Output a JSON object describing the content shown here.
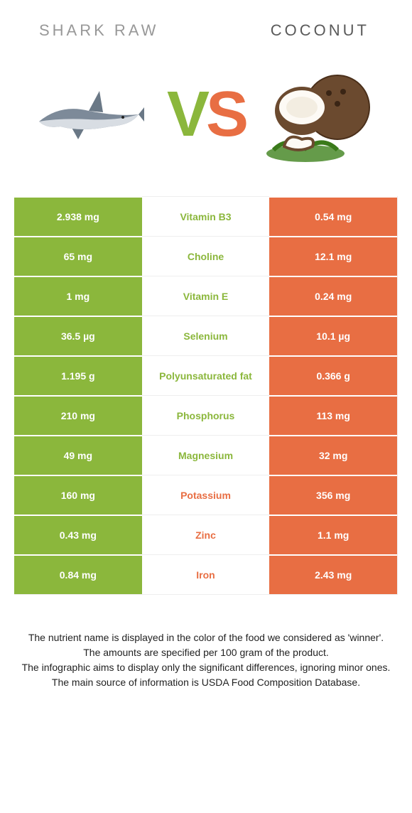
{
  "colors": {
    "green": "#8bb73c",
    "orange": "#e86e43",
    "title_left": "#989898",
    "title_right": "#5a5a5a",
    "white_text": "#ffffff",
    "footer_text": "#222222"
  },
  "titles": {
    "left": "Shark Raw",
    "right": "Coconut"
  },
  "vs": {
    "v": "V",
    "s": "S"
  },
  "rows": [
    {
      "left": "2.938 mg",
      "name": "Vitamin B3",
      "right": "0.54 mg",
      "winner": "left"
    },
    {
      "left": "65 mg",
      "name": "Choline",
      "right": "12.1 mg",
      "winner": "left"
    },
    {
      "left": "1 mg",
      "name": "Vitamin E",
      "right": "0.24 mg",
      "winner": "left"
    },
    {
      "left": "36.5 µg",
      "name": "Selenium",
      "right": "10.1 µg",
      "winner": "left"
    },
    {
      "left": "1.195 g",
      "name": "Polyunsaturated fat",
      "right": "0.366 g",
      "winner": "left"
    },
    {
      "left": "210 mg",
      "name": "Phosphorus",
      "right": "113 mg",
      "winner": "left"
    },
    {
      "left": "49 mg",
      "name": "Magnesium",
      "right": "32 mg",
      "winner": "left"
    },
    {
      "left": "160 mg",
      "name": "Potassium",
      "right": "356 mg",
      "winner": "right"
    },
    {
      "left": "0.43 mg",
      "name": "Zinc",
      "right": "1.1 mg",
      "winner": "right"
    },
    {
      "left": "0.84 mg",
      "name": "Iron",
      "right": "2.43 mg",
      "winner": "right"
    }
  ],
  "footer": {
    "l1": "The nutrient name is displayed in the color of the food we considered as 'winner'.",
    "l2": "The amounts are specified per 100 gram of the product.",
    "l3": "The infographic aims to display only the significant differences, ignoring minor ones.",
    "l4": "The main source of information is USDA Food Composition Database."
  }
}
